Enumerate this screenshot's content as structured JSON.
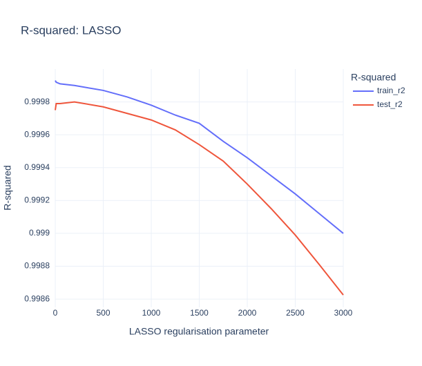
{
  "chart_data": {
    "type": "line",
    "title": "R-squared: LASSO",
    "x_label": "LASSO regularisation parameter",
    "y_label": "R-squared",
    "legend_title": "R-squared",
    "legend": "top-right-outside",
    "grid": true,
    "x": [
      0,
      10,
      50,
      200,
      500,
      750,
      1000,
      1250,
      1500,
      1750,
      2000,
      2250,
      2500,
      2750,
      3000
    ],
    "series": [
      {
        "name": "train_r2",
        "color": "#636efa",
        "values": [
          0.99993,
          0.99992,
          0.99991,
          0.9999,
          0.99987,
          0.99983,
          0.99978,
          0.99972,
          0.99967,
          0.99956,
          0.99946,
          0.99935,
          0.99924,
          0.99912,
          0.999
        ]
      },
      {
        "name": "test_r2",
        "color": "#ef553b",
        "values": [
          0.99975,
          0.99979,
          0.99979,
          0.9998,
          0.99977,
          0.99973,
          0.99969,
          0.99963,
          0.99954,
          0.99944,
          0.9993,
          0.99915,
          0.99899,
          0.99881,
          0.998625
        ]
      }
    ],
    "xlim": [
      0,
      3000
    ],
    "xticks": [
      0,
      500,
      1000,
      1500,
      2000,
      2500,
      3000
    ],
    "ylim": [
      0.99855,
      1.0
    ],
    "yticks": [
      0.9986,
      0.9988,
      0.999,
      0.9992,
      0.9994,
      0.9996,
      0.9998
    ]
  }
}
